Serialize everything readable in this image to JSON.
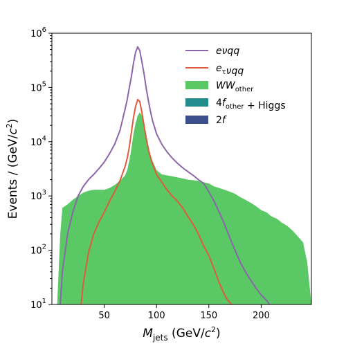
{
  "chart_data": {
    "type": "area",
    "xlabel": "M_jets (GeV/c^2)",
    "ylabel": "Events / (GeV/c^2)",
    "x_scale": "linear",
    "y_scale": "log",
    "xlim": [
      0,
      248
    ],
    "ylim": [
      10,
      1000000
    ],
    "x_ticks": [
      50,
      100,
      150,
      200
    ],
    "y_ticks": [
      10,
      100,
      1000,
      10000,
      100000,
      1000000
    ],
    "grid": false,
    "legend_position": "top-right",
    "series": [
      {
        "name": "2f",
        "legend": {
          "base": "2",
          "italic": "f",
          "sub": ""
        },
        "kind": "filled",
        "color": "#3b4f8c",
        "x": [
          15,
          20,
          25,
          30,
          35,
          40,
          45,
          50,
          55,
          60,
          65,
          70,
          75,
          80,
          85,
          90,
          95,
          100,
          105,
          110,
          115,
          120,
          125,
          130,
          135,
          140
        ],
        "y": [
          12,
          22,
          28,
          35,
          28,
          40,
          30,
          25,
          22,
          20,
          25,
          30,
          30,
          32,
          25,
          28,
          40,
          42,
          50,
          38,
          42,
          40,
          30,
          20,
          15,
          10
        ]
      },
      {
        "name": "4f_other + Higgs",
        "legend": {
          "base": "4",
          "italic": "f",
          "sub": "other",
          "suffix": " + Higgs"
        },
        "kind": "filled",
        "color": "#228c8d",
        "x": [
          12,
          15,
          20,
          25,
          30,
          35,
          40,
          45,
          50,
          55,
          60,
          65,
          70,
          75,
          80,
          85,
          90,
          95,
          100,
          105,
          110,
          115,
          120,
          125,
          130,
          135,
          140,
          145,
          150,
          155,
          160,
          165,
          170,
          175,
          180,
          185,
          190,
          195,
          200,
          205,
          210,
          215,
          220,
          225,
          230,
          235,
          240
        ],
        "y": [
          10,
          25,
          70,
          150,
          260,
          380,
          500,
          550,
          560,
          550,
          520,
          520,
          550,
          600,
          620,
          650,
          700,
          900,
          1150,
          1400,
          1500,
          1450,
          1350,
          1300,
          1200,
          1150,
          1100,
          1050,
          1000,
          900,
          800,
          700,
          600,
          450,
          350,
          280,
          250,
          200,
          170,
          150,
          130,
          110,
          90,
          70,
          45,
          25,
          10
        ]
      },
      {
        "name": "WW_other",
        "legend": {
          "base": "",
          "italic": "WW",
          "sub": "other"
        },
        "kind": "filled",
        "color": "#5ac864",
        "x": [
          5,
          8,
          10,
          15,
          20,
          25,
          30,
          35,
          40,
          45,
          50,
          55,
          60,
          65,
          70,
          72,
          74,
          76,
          78,
          80,
          82,
          84,
          86,
          88,
          90,
          92,
          94,
          96,
          100,
          105,
          110,
          115,
          120,
          125,
          130,
          135,
          140,
          145,
          150,
          155,
          160,
          165,
          170,
          175,
          180,
          185,
          190,
          195,
          200,
          205,
          210,
          215,
          220,
          225,
          230,
          235,
          240,
          244,
          248
        ],
        "y": [
          10,
          200,
          600,
          700,
          850,
          1000,
          1150,
          1250,
          1300,
          1300,
          1300,
          1400,
          1600,
          1900,
          2400,
          3000,
          4500,
          7500,
          14000,
          22000,
          30000,
          35000,
          30000,
          22000,
          14000,
          9000,
          6000,
          4500,
          3000,
          2500,
          2400,
          2300,
          2200,
          2100,
          2000,
          1950,
          1900,
          1800,
          1700,
          1500,
          1400,
          1300,
          1200,
          1100,
          950,
          850,
          750,
          650,
          550,
          500,
          420,
          380,
          320,
          280,
          230,
          180,
          140,
          60,
          10
        ]
      },
      {
        "name": "e_tau nu qq",
        "legend": {
          "base": "",
          "italic": "e",
          "sub": "τ",
          "italic2": "νqq"
        },
        "kind": "line",
        "color": "#e05a3c",
        "x": [
          28,
          30,
          35,
          40,
          45,
          50,
          55,
          60,
          65,
          70,
          72,
          74,
          76,
          78,
          80,
          82,
          84,
          86,
          88,
          90,
          92,
          95,
          100,
          105,
          110,
          115,
          120,
          125,
          130,
          135,
          140,
          145,
          150,
          155,
          160,
          165,
          168,
          172
        ],
        "y": [
          10,
          25,
          90,
          200,
          330,
          500,
          800,
          1200,
          1900,
          3500,
          5000,
          8000,
          15000,
          28000,
          45000,
          60000,
          55000,
          35000,
          20000,
          12000,
          7500,
          4500,
          2500,
          1800,
          1300,
          1000,
          800,
          600,
          420,
          300,
          200,
          120,
          80,
          45,
          25,
          15,
          12,
          10
        ]
      },
      {
        "name": "e nu qq",
        "legend": {
          "base": "",
          "italic": "eνqq",
          "sub": ""
        },
        "kind": "line",
        "color": "#8c64aa",
        "x": [
          8,
          10,
          15,
          20,
          25,
          30,
          35,
          40,
          45,
          50,
          55,
          60,
          65,
          70,
          72,
          74,
          76,
          78,
          80,
          82,
          84,
          86,
          88,
          90,
          92,
          94,
          96,
          100,
          105,
          110,
          115,
          120,
          125,
          130,
          135,
          140,
          145,
          150,
          155,
          160,
          165,
          170,
          175,
          180,
          185,
          190,
          195,
          200,
          205,
          208
        ],
        "y": [
          10,
          40,
          200,
          500,
          1000,
          1500,
          2000,
          2500,
          3200,
          4200,
          6000,
          9000,
          16000,
          40000,
          60000,
          100000,
          160000,
          280000,
          450000,
          560000,
          480000,
          300000,
          180000,
          100000,
          60000,
          38000,
          25000,
          14000,
          9000,
          6500,
          5000,
          4000,
          3300,
          2800,
          2400,
          2000,
          1700,
          1200,
          800,
          500,
          300,
          170,
          100,
          60,
          40,
          28,
          20,
          15,
          12,
          10
        ]
      }
    ]
  }
}
